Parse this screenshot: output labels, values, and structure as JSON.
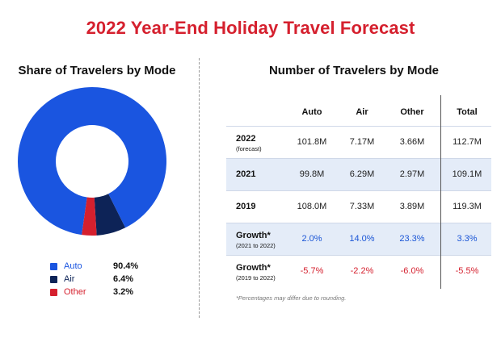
{
  "title": "2022 Year-End Holiday Travel Forecast",
  "chart_data": [
    {
      "type": "pie",
      "title": "Share of Travelers by Mode",
      "categories": [
        "Auto",
        "Air",
        "Other"
      ],
      "values": [
        90.4,
        6.4,
        3.2
      ],
      "value_labels": [
        "90.4%",
        "6.4%",
        "3.2%"
      ],
      "colors": [
        "#1a55e0",
        "#0d2357",
        "#d5202e"
      ],
      "donut": true,
      "legend": "bottom-left"
    },
    {
      "type": "table",
      "title": "Number of Travelers by Mode",
      "columns": [
        "Auto",
        "Air",
        "Other",
        "Total"
      ],
      "rows": [
        {
          "label": "2022",
          "sublabel": "(forecast)",
          "values": [
            "101.8M",
            "7.17M",
            "3.66M",
            "112.7M"
          ],
          "style": "normal",
          "shaded": false
        },
        {
          "label": "2021",
          "sublabel": "",
          "values": [
            "99.8M",
            "6.29M",
            "2.97M",
            "109.1M"
          ],
          "style": "normal",
          "shaded": true
        },
        {
          "label": "2019",
          "sublabel": "",
          "values": [
            "108.0M",
            "7.33M",
            "3.89M",
            "119.3M"
          ],
          "style": "normal",
          "shaded": false
        },
        {
          "label": "Growth*",
          "sublabel": "(2021 to 2022)",
          "values": [
            "2.0%",
            "14.0%",
            "23.3%",
            "3.3%"
          ],
          "style": "blue",
          "shaded": true
        },
        {
          "label": "Growth*",
          "sublabel": "(2019 to 2022)",
          "values": [
            "-5.7%",
            "-2.2%",
            "-6.0%",
            "-5.5%"
          ],
          "style": "red",
          "shaded": false
        }
      ]
    }
  ],
  "footnote": "*Percentages may differ due to rounding."
}
